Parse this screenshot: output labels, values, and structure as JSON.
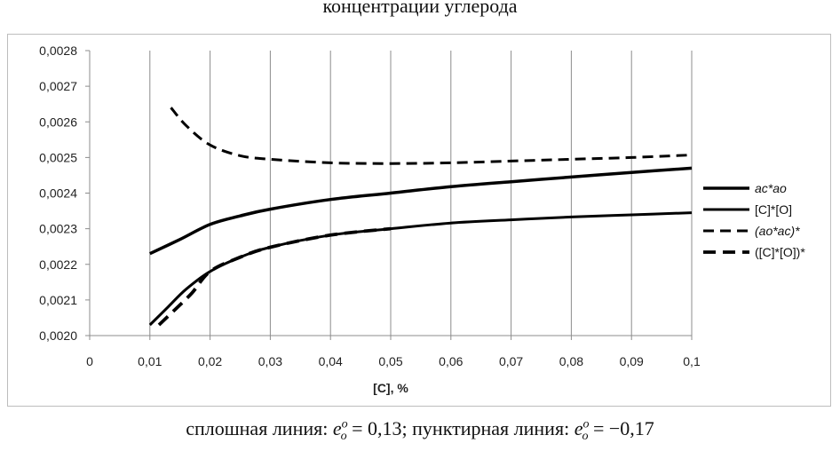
{
  "page": {
    "top_title": "концентрации углерода",
    "caption_solid_label": "сплошная линия: ",
    "caption_solid_value": "= 0,13; ",
    "caption_dashed_label": "пунктирная линия: ",
    "caption_dashed_value": "= −0,17",
    "caption_symbol": "e",
    "caption_symbol_sup": "o",
    "caption_symbol_sub": "o"
  },
  "chart_data": {
    "type": "line",
    "title": "концентрации углерода",
    "xlabel": "[C], %",
    "ylabel": "",
    "xlim": [
      0,
      0.1
    ],
    "ylim": [
      0.002,
      0.0028
    ],
    "x_ticks": [
      0,
      0.01,
      0.02,
      0.03,
      0.04,
      0.05,
      0.06,
      0.07,
      0.08,
      0.09,
      0.1
    ],
    "x_tick_labels": [
      "0",
      "0,01",
      "0,02",
      "0,03",
      "0,04",
      "0,05",
      "0,06",
      "0,07",
      "0,08",
      "0,09",
      "0,1"
    ],
    "y_ticks": [
      0.002,
      0.0021,
      0.0022,
      0.0023,
      0.0024,
      0.0025,
      0.0026,
      0.0027,
      0.0028
    ],
    "y_tick_labels": [
      "0,0020",
      "0,0021",
      "0,0022",
      "0,0023",
      "0,0024",
      "0,0025",
      "0,0026",
      "0,0027",
      "0,0028"
    ],
    "grid": "vertical",
    "legend_position": "right",
    "series": [
      {
        "name": "ac*ao",
        "style": "solid-thick",
        "points": [
          [
            0.01,
            0.00223
          ],
          [
            0.015,
            0.00227
          ],
          [
            0.02,
            0.002312
          ],
          [
            0.025,
            0.002336
          ],
          [
            0.03,
            0.002355
          ],
          [
            0.04,
            0.002382
          ],
          [
            0.05,
            0.0024
          ],
          [
            0.06,
            0.002418
          ],
          [
            0.07,
            0.002432
          ],
          [
            0.08,
            0.002445
          ],
          [
            0.09,
            0.002458
          ],
          [
            0.1,
            0.00247
          ]
        ]
      },
      {
        "name": "[C]*[O]",
        "style": "solid",
        "points": [
          [
            0.01,
            0.00203
          ],
          [
            0.013,
            0.00208
          ],
          [
            0.016,
            0.00213
          ],
          [
            0.02,
            0.00218
          ],
          [
            0.025,
            0.00222
          ],
          [
            0.03,
            0.002248
          ],
          [
            0.04,
            0.002282
          ],
          [
            0.05,
            0.0023
          ],
          [
            0.06,
            0.002316
          ],
          [
            0.07,
            0.002325
          ],
          [
            0.08,
            0.002333
          ],
          [
            0.09,
            0.002339
          ],
          [
            0.1,
            0.002345
          ]
        ]
      },
      {
        "name": "(ao*ac)*",
        "style": "dashed",
        "points": [
          [
            0.0135,
            0.00264
          ],
          [
            0.016,
            0.00259
          ],
          [
            0.02,
            0.002535
          ],
          [
            0.025,
            0.002505
          ],
          [
            0.03,
            0.002495
          ],
          [
            0.04,
            0.002485
          ],
          [
            0.05,
            0.002483
          ],
          [
            0.06,
            0.002485
          ],
          [
            0.07,
            0.00249
          ],
          [
            0.08,
            0.002495
          ],
          [
            0.09,
            0.0025
          ],
          [
            0.1,
            0.002507
          ]
        ]
      },
      {
        "name": "([C]*[O])*",
        "style": "dashed-thick",
        "points": [
          [
            0.0115,
            0.00203
          ],
          [
            0.014,
            0.00207
          ],
          [
            0.017,
            0.00212
          ],
          [
            0.02,
            0.00218
          ],
          [
            0.025,
            0.00222
          ],
          [
            0.03,
            0.002248
          ],
          [
            0.04,
            0.002282
          ],
          [
            0.05,
            0.0023
          ]
        ]
      }
    ]
  }
}
